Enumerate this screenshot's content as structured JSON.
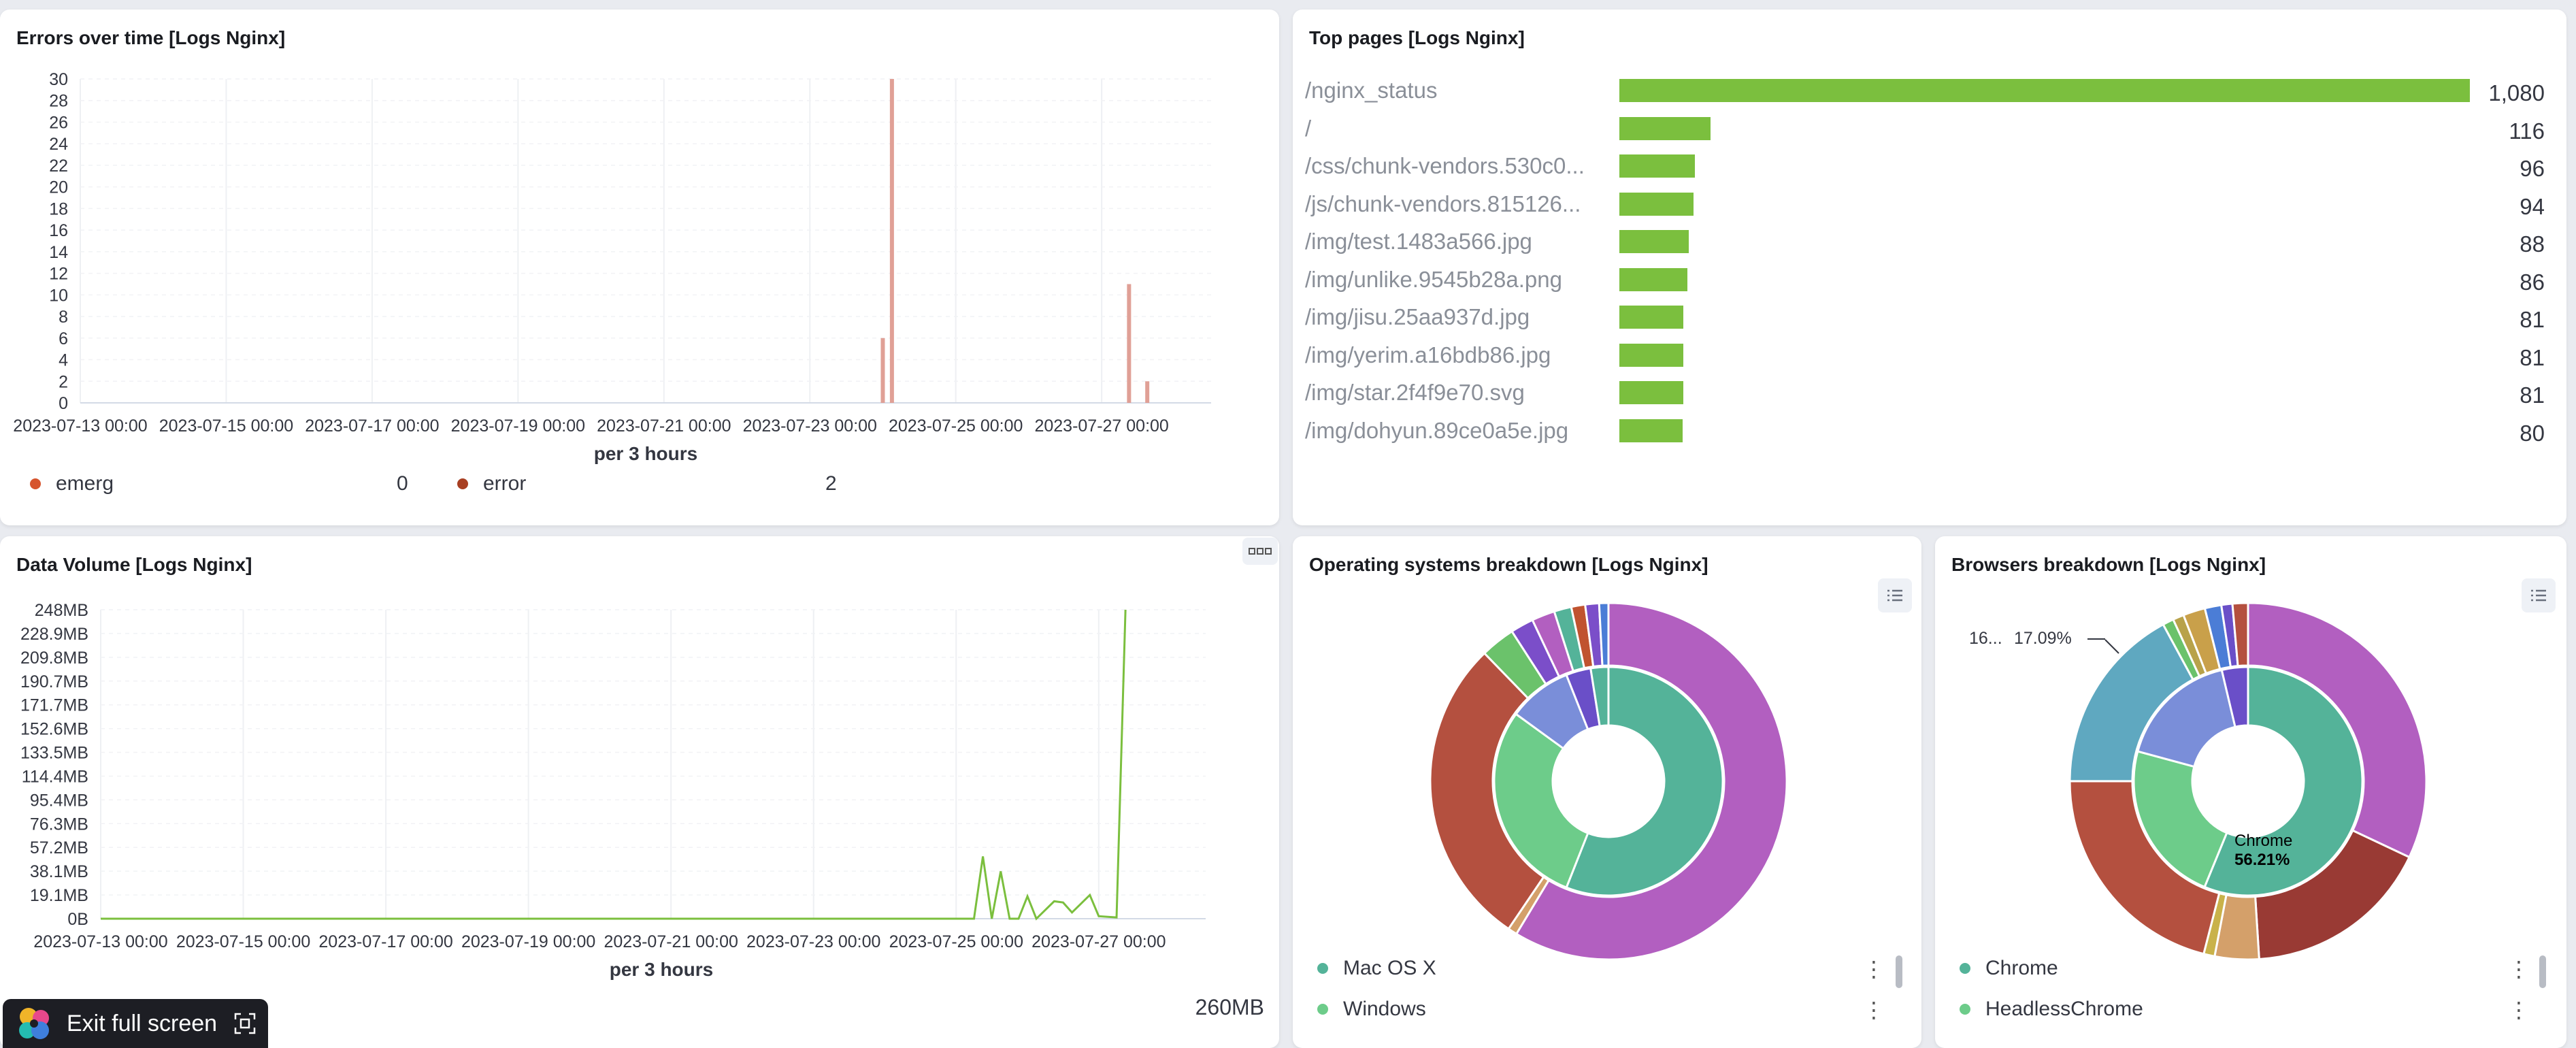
{
  "errors_panel": {
    "title": "Errors over time [Logs Nginx]",
    "xlabel": "per 3 hours",
    "legend": [
      {
        "label": "emerg",
        "value": "0",
        "color": "#d6542d"
      },
      {
        "label": "error",
        "value": "2",
        "color": "#a83f22"
      }
    ]
  },
  "top_pages_panel": {
    "title": "Top pages [Logs Nginx]",
    "bar_color": "#7bbf3e",
    "rows": [
      {
        "label": "/nginx_status",
        "value": 1080,
        "display": "1,080"
      },
      {
        "label": "/",
        "value": 116,
        "display": "116"
      },
      {
        "label": "/css/chunk-vendors.530c0...",
        "value": 96,
        "display": "96"
      },
      {
        "label": "/js/chunk-vendors.815126...",
        "value": 94,
        "display": "94"
      },
      {
        "label": "/img/test.1483a566.jpg",
        "value": 88,
        "display": "88"
      },
      {
        "label": "/img/unlike.9545b28a.png",
        "value": 86,
        "display": "86"
      },
      {
        "label": "/img/jisu.25aa937d.jpg",
        "value": 81,
        "display": "81"
      },
      {
        "label": "/img/yerim.a16bdb86.jpg",
        "value": 81,
        "display": "81"
      },
      {
        "label": "/img/star.2f4f9e70.svg",
        "value": 81,
        "display": "81"
      },
      {
        "label": "/img/dohyun.89ce0a5e.jpg",
        "value": 80,
        "display": "80"
      }
    ]
  },
  "data_volume_panel": {
    "title": "Data Volume [Logs Nginx]",
    "xlabel": "per 3 hours",
    "total": "260MB",
    "options_icon": "ellipsis-icon"
  },
  "os_panel": {
    "title": "Operating systems breakdown [Logs Nginx]",
    "legend": [
      {
        "label": "Mac OS X",
        "color": "#54b399"
      },
      {
        "label": "Windows",
        "color": "#6dcc8a"
      }
    ]
  },
  "browsers_panel": {
    "title": "Browsers breakdown [Logs Nginx]",
    "annotation_left": "16...",
    "annotation_pct": "17.09%",
    "center_label": "Chrome",
    "center_pct": "56.21%",
    "legend": [
      {
        "label": "Chrome",
        "color": "#54b399"
      },
      {
        "label": "HeadlessChrome",
        "color": "#6dcc8a"
      }
    ]
  },
  "exit_fullscreen": {
    "label": "Exit full screen"
  },
  "chart_data": [
    {
      "type": "bar",
      "title": "Errors over time [Logs Nginx]",
      "xlabel": "per 3 hours",
      "x_ticks": [
        "2023-07-13 00:00",
        "2023-07-15 00:00",
        "2023-07-17 00:00",
        "2023-07-19 00:00",
        "2023-07-21 00:00",
        "2023-07-23 00:00",
        "2023-07-25 00:00",
        "2023-07-27 00:00"
      ],
      "x_range": [
        "2023-07-13 00:00",
        "2023-07-28 12:00"
      ],
      "ylim": [
        0,
        30
      ],
      "y_ticks": [
        0,
        2,
        4,
        6,
        8,
        10,
        12,
        14,
        16,
        18,
        20,
        22,
        24,
        26,
        28,
        30
      ],
      "series": [
        {
          "name": "emerg",
          "color": "#d6542d",
          "points": []
        },
        {
          "name": "error",
          "color": "#e0a096",
          "points": [
            {
              "x": "2023-07-24 00:00",
              "y": 6
            },
            {
              "x": "2023-07-24 03:00",
              "y": 30
            },
            {
              "x": "2023-07-27 09:00",
              "y": 11
            },
            {
              "x": "2023-07-27 15:00",
              "y": 2
            }
          ]
        }
      ]
    },
    {
      "type": "bar",
      "title": "Top pages [Logs Nginx]",
      "orientation": "horizontal",
      "categories": [
        "/nginx_status",
        "/",
        "/css/chunk-vendors.530c0...",
        "/js/chunk-vendors.815126...",
        "/img/test.1483a566.jpg",
        "/img/unlike.9545b28a.png",
        "/img/jisu.25aa937d.jpg",
        "/img/yerim.a16bdb86.jpg",
        "/img/star.2f4f9e70.svg",
        "/img/dohyun.89ce0a5e.jpg"
      ],
      "values": [
        1080,
        116,
        96,
        94,
        88,
        86,
        81,
        81,
        81,
        80
      ]
    },
    {
      "type": "line",
      "title": "Data Volume [Logs Nginx]",
      "xlabel": "per 3 hours",
      "x_ticks": [
        "2023-07-13 00:00",
        "2023-07-15 00:00",
        "2023-07-17 00:00",
        "2023-07-19 00:00",
        "2023-07-21 00:00",
        "2023-07-23 00:00",
        "2023-07-25 00:00",
        "2023-07-27 00:00"
      ],
      "x_range": [
        "2023-07-13 00:00",
        "2023-07-28 12:00"
      ],
      "ylim": [
        0,
        248
      ],
      "y_unit": "MB",
      "y_ticks": [
        "0B",
        "19.1MB",
        "38.1MB",
        "57.2MB",
        "76.3MB",
        "95.4MB",
        "114.4MB",
        "133.5MB",
        "152.6MB",
        "171.7MB",
        "190.7MB",
        "209.8MB",
        "228.9MB",
        "248MB"
      ],
      "series": [
        {
          "color": "#7bbf3e",
          "points": [
            {
              "x": "2023-07-13 00:00",
              "y": 0
            },
            {
              "x": "2023-07-25 06:00",
              "y": 0
            },
            {
              "x": "2023-07-25 09:00",
              "y": 50
            },
            {
              "x": "2023-07-25 12:00",
              "y": 0
            },
            {
              "x": "2023-07-25 15:00",
              "y": 38
            },
            {
              "x": "2023-07-25 18:00",
              "y": 0
            },
            {
              "x": "2023-07-25 21:00",
              "y": 0
            },
            {
              "x": "2023-07-26 00:00",
              "y": 18
            },
            {
              "x": "2023-07-26 03:00",
              "y": 0
            },
            {
              "x": "2023-07-26 09:00",
              "y": 14
            },
            {
              "x": "2023-07-26 12:00",
              "y": 13
            },
            {
              "x": "2023-07-26 15:00",
              "y": 5
            },
            {
              "x": "2023-07-26 21:00",
              "y": 19
            },
            {
              "x": "2023-07-27 00:00",
              "y": 2
            },
            {
              "x": "2023-07-27 06:00",
              "y": 1
            },
            {
              "x": "2023-07-27 09:00",
              "y": 248
            }
          ]
        }
      ]
    },
    {
      "type": "pie",
      "title": "Operating systems breakdown [Logs Nginx]",
      "donut": true,
      "inner_ring": [
        {
          "label": "Mac OS X",
          "value": 56,
          "color": "#54b399"
        },
        {
          "label": "Windows",
          "value": 29,
          "color": "#6dcc8a"
        },
        {
          "value": 9,
          "color": "#7a8ed9"
        },
        {
          "value": 3.5,
          "color": "#6a4fc8"
        },
        {
          "value": 2.5,
          "color": "#54b399"
        }
      ],
      "outer_ring": [
        {
          "value": 56,
          "color": "#b25fc0"
        },
        {
          "value": 0.8,
          "color": "#d4a06a"
        },
        {
          "value": 27,
          "color": "#b4503f"
        },
        {
          "value": 3,
          "color": "#6bc26b"
        },
        {
          "value": 2,
          "color": "#7b4ec9"
        },
        {
          "value": 2,
          "color": "#b25fc0"
        },
        {
          "value": 1.5,
          "color": "#54b399"
        },
        {
          "value": 1.2,
          "color": "#c0532f"
        },
        {
          "value": 1.2,
          "color": "#7b4ec9"
        },
        {
          "value": 0.8,
          "color": "#4b7dd6"
        }
      ]
    },
    {
      "type": "pie",
      "title": "Browsers breakdown [Logs Nginx]",
      "donut": true,
      "inner_ring": [
        {
          "label": "Chrome",
          "value": 56.21,
          "color": "#54b399"
        },
        {
          "label": "HeadlessChrome",
          "value": 23,
          "color": "#6dcc8a"
        },
        {
          "value": 17.09,
          "color": "#7a8ed9"
        },
        {
          "value": 3.7,
          "color": "#6a4fc8"
        }
      ],
      "outer_ring": [
        {
          "value": 32,
          "color": "#b25fc0"
        },
        {
          "value": 17,
          "color": "#993a34"
        },
        {
          "value": 4,
          "color": "#d4a06a"
        },
        {
          "value": 1,
          "color": "#c9b24a"
        },
        {
          "value": 21,
          "color": "#b4503f"
        },
        {
          "value": 17.09,
          "color": "#5fa8c0"
        },
        {
          "value": 1,
          "color": "#6bc26b"
        },
        {
          "value": 1,
          "color": "#b8a24a"
        },
        {
          "value": 2,
          "color": "#c9a04a"
        },
        {
          "value": 1.5,
          "color": "#4b7dd6"
        },
        {
          "value": 1,
          "color": "#6a4fc8"
        },
        {
          "value": 1.4,
          "color": "#b4503f"
        }
      ]
    }
  ]
}
